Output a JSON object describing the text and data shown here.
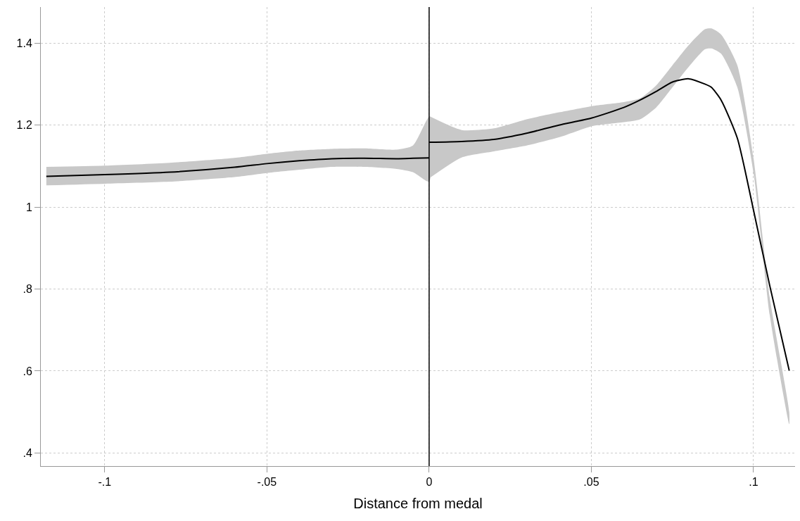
{
  "chart_data": {
    "type": "line",
    "xlabel": "Distance from medal",
    "xlim": [
      -0.1197,
      0.1128
    ],
    "ylim": [
      0.368,
      1.488
    ],
    "xticks": [
      {
        "value": -0.1,
        "label": "-.1"
      },
      {
        "value": -0.05,
        "label": "-.05"
      },
      0,
      {
        "value": 0.05,
        "label": ".05"
      },
      {
        "value": 0.1,
        "label": ".1"
      }
    ],
    "yticks": [
      {
        "value": 0.4,
        "label": ".4"
      },
      {
        "value": 0.6,
        "label": ".6"
      },
      {
        "value": 0.8,
        "label": ".8"
      },
      1,
      1.2,
      1.4
    ],
    "grid": true,
    "marker": "none",
    "line_style": "solid",
    "series": [
      {
        "color": "#000000",
        "x": [
          -0.118,
          -0.1,
          -0.08,
          -0.06,
          -0.05,
          -0.04,
          -0.03,
          -0.02,
          -0.01,
          -0.005,
          0
        ],
        "values": [
          1.075,
          1.079,
          1.085,
          1.097,
          1.106,
          1.113,
          1.118,
          1.119,
          1.118,
          1.119,
          1.12
        ],
        "lower": [
          1.053,
          1.057,
          1.062,
          1.073,
          1.083,
          1.091,
          1.098,
          1.098,
          1.093,
          1.085,
          1.062
        ],
        "upper": [
          1.098,
          1.101,
          1.108,
          1.12,
          1.13,
          1.138,
          1.142,
          1.143,
          1.14,
          1.15,
          1.22
        ]
      },
      {
        "color": "#000000",
        "x": [
          0,
          0.01,
          0.02,
          0.03,
          0.04,
          0.05,
          0.06,
          0.065,
          0.07,
          0.075,
          0.08,
          0.085,
          0.087,
          0.09,
          0.095,
          0.1,
          0.105,
          0.111
        ],
        "values": [
          1.158,
          1.16,
          1.165,
          1.18,
          1.2,
          1.217,
          1.243,
          1.261,
          1.282,
          1.305,
          1.313,
          1.3,
          1.292,
          1.261,
          1.168,
          0.992,
          0.808,
          0.601
        ],
        "lower": [
          1.07,
          1.121,
          1.136,
          1.15,
          1.17,
          1.197,
          1.207,
          1.214,
          1.243,
          1.292,
          1.342,
          1.385,
          1.387,
          1.374,
          1.292,
          1.083,
          0.736,
          0.47
        ],
        "upper": [
          1.222,
          1.188,
          1.192,
          1.214,
          1.231,
          1.246,
          1.256,
          1.265,
          1.297,
          1.346,
          1.395,
          1.434,
          1.436,
          1.421,
          1.346,
          1.119,
          0.779,
          0.5
        ]
      }
    ],
    "ref_lines": [
      {
        "axis": "x",
        "value": 0,
        "color": "#000000",
        "line_style": "solid"
      }
    ]
  }
}
